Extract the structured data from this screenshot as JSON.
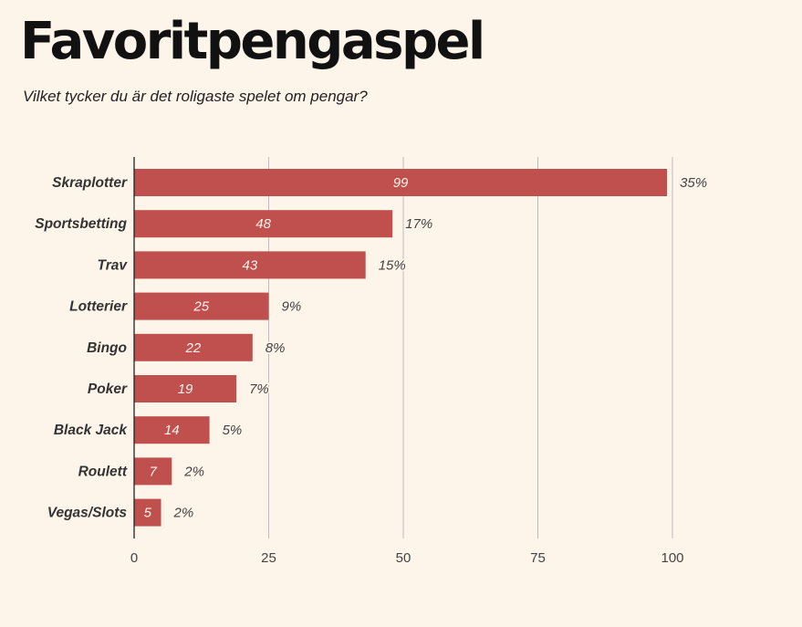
{
  "title": "Favoritpengaspel",
  "subtitle": "Vilket tycker du är det roligaste spelet om pengar?",
  "colors": {
    "background": "#fdf4ea",
    "bar": "#c0504d",
    "grid": "#bdbdbd",
    "axis": "#222222"
  },
  "chart_data": {
    "type": "bar",
    "orientation": "horizontal",
    "categories": [
      "Skraplotter",
      "Sportsbetting",
      "Trav",
      "Lotterier",
      "Bingo",
      "Poker",
      "Black Jack",
      "Roulett",
      "Vegas/Slots"
    ],
    "values": [
      99,
      48,
      43,
      25,
      22,
      19,
      14,
      7,
      5
    ],
    "percent_labels": [
      "35%",
      "17%",
      "15%",
      "9%",
      "8%",
      "7%",
      "5%",
      "2%",
      "2%"
    ],
    "xlim": [
      0,
      100
    ],
    "xticks": [
      0,
      25,
      50,
      75,
      100
    ],
    "grid": true
  }
}
